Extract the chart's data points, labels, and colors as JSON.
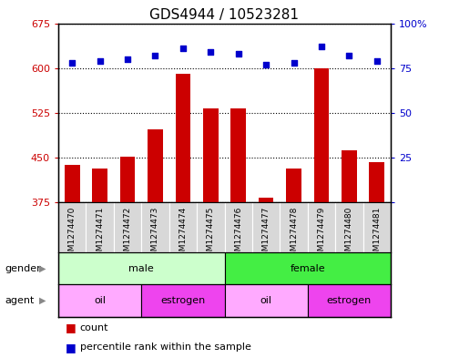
{
  "title": "GDS4944 / 10523281",
  "samples": [
    "GSM1274470",
    "GSM1274471",
    "GSM1274472",
    "GSM1274473",
    "GSM1274474",
    "GSM1274475",
    "GSM1274476",
    "GSM1274477",
    "GSM1274478",
    "GSM1274479",
    "GSM1274480",
    "GSM1274481"
  ],
  "count_values": [
    437,
    432,
    452,
    497,
    590,
    532,
    532,
    383,
    432,
    600,
    462,
    443
  ],
  "percentile_values": [
    78,
    79,
    80,
    82,
    86,
    84,
    83,
    77,
    78,
    87,
    82,
    79
  ],
  "ylim_left": [
    375,
    675
  ],
  "ylim_right": [
    0,
    100
  ],
  "yticks_left": [
    375,
    450,
    525,
    600,
    675
  ],
  "yticks_right": [
    0,
    25,
    50,
    75,
    100
  ],
  "bar_color": "#cc0000",
  "dot_color": "#0000cc",
  "bar_width": 0.55,
  "gender_groups": [
    {
      "label": "male",
      "start": 0,
      "end": 6,
      "color": "#ccffcc"
    },
    {
      "label": "female",
      "start": 6,
      "end": 12,
      "color": "#44ee44"
    }
  ],
  "agent_groups": [
    {
      "label": "oil",
      "start": 0,
      "end": 3,
      "color": "#ffaaff"
    },
    {
      "label": "estrogen",
      "start": 3,
      "end": 6,
      "color": "#ee44ee"
    },
    {
      "label": "oil",
      "start": 6,
      "end": 9,
      "color": "#ffaaff"
    },
    {
      "label": "estrogen",
      "start": 9,
      "end": 12,
      "color": "#ee44ee"
    }
  ],
  "plot_bg": "#ffffff",
  "tick_label_color_left": "#cc0000",
  "tick_label_color_right": "#0000cc",
  "title_fontsize": 11,
  "tick_fontsize": 8,
  "sample_label_fontsize": 6.5,
  "row_label_fontsize": 8,
  "legend_fontsize": 8
}
